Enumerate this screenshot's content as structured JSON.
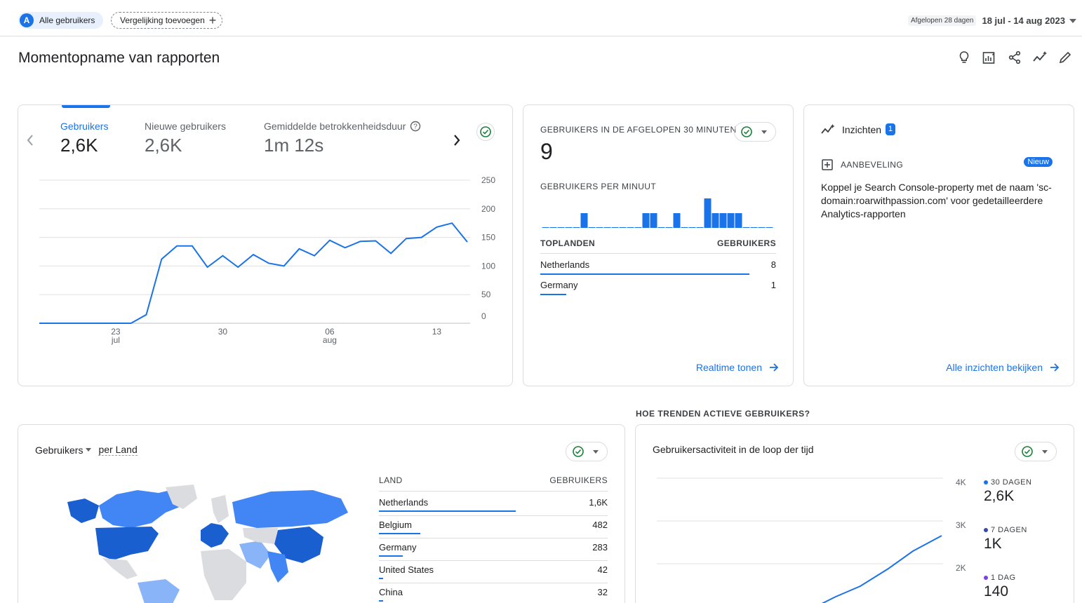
{
  "topbar": {
    "segment_avatar": "A",
    "segment_label": "Alle gebruikers",
    "compare_label": "Vergelijking toevoegen",
    "compare_plus": "+",
    "date_hint": "Afgelopen 28 dagen",
    "date_range": "18 jul - 14 aug 2023"
  },
  "page": {
    "title": "Momentopname van rapporten",
    "action_icons": [
      "lightbulb-icon",
      "customize-report-icon",
      "share-icon",
      "insights-icon",
      "edit-icon"
    ]
  },
  "overview": {
    "metrics": [
      {
        "label": "Gebruikers",
        "value": "2,6K",
        "active": true
      },
      {
        "label": "Nieuwe gebruikers",
        "value": "2,6K",
        "active": false
      },
      {
        "label": "Gemiddelde betrokkenheidsduur",
        "value": "1m 12s",
        "active": false
      }
    ],
    "chart_data": {
      "type": "line",
      "y_ticks": [
        "250",
        "200",
        "150",
        "100",
        "50",
        "0"
      ],
      "ylim": [
        0,
        250
      ],
      "x_ticks": [
        {
          "label": "23",
          "sub": "jul"
        },
        {
          "label": "30",
          "sub": ""
        },
        {
          "label": "06",
          "sub": "aug"
        },
        {
          "label": "13",
          "sub": ""
        }
      ],
      "grid": true,
      "series": [
        {
          "color": "#1a73e8",
          "values": [
            0,
            0,
            0,
            0,
            0,
            0,
            0,
            15,
            112,
            135,
            135,
            98,
            118,
            98,
            120,
            105,
            100,
            130,
            118,
            145,
            132,
            143,
            144,
            122,
            148,
            150,
            168,
            175,
            142
          ]
        }
      ]
    }
  },
  "realtime": {
    "title": "GEBRUIKERS IN DE AFGELOPEN 30 MINUTEN",
    "value": "9",
    "per_minute_title": "GEBRUIKERS PER MINUUT",
    "per_minute_chart": {
      "type": "bar",
      "values": [
        0,
        0,
        0,
        0,
        0,
        1,
        0,
        0,
        0,
        0,
        0,
        0,
        0,
        1,
        1,
        0,
        0,
        1,
        0,
        0,
        0,
        2,
        1,
        1,
        1,
        1,
        0,
        0,
        0,
        0
      ]
    },
    "table_header_left": "TOPLANDEN",
    "table_header_right": "GEBRUIKERS",
    "rows": [
      {
        "name": "Netherlands",
        "value": "8",
        "num": 8
      },
      {
        "name": "Germany",
        "value": "1",
        "num": 1
      }
    ],
    "link": "Realtime tonen"
  },
  "insights": {
    "title": "Inzichten",
    "count": "1",
    "reco_label": "AANBEVELING",
    "new_badge": "Nieuw",
    "text": "Koppel je Search Console-property met de naam 'sc-domain:roarwithpassion.com' voor gedetailleerdere Analytics-rapporten",
    "link": "Alle inzichten bekijken"
  },
  "trend_section_label": "HOE TRENDEN ACTIEVE GEBRUIKERS?",
  "country_card": {
    "metric_label": "Gebruikers",
    "dimension_label": "per Land",
    "table_header_left": "LAND",
    "table_header_right": "GEBRUIKERS",
    "rows": [
      {
        "name": "Netherlands",
        "value": "1,6K",
        "num": 1600
      },
      {
        "name": "Belgium",
        "value": "482",
        "num": 482
      },
      {
        "name": "Germany",
        "value": "283",
        "num": 283
      },
      {
        "name": "United States",
        "value": "42",
        "num": 42
      },
      {
        "name": "China",
        "value": "32",
        "num": 32
      }
    ]
  },
  "activity_card": {
    "title": "Gebruikersactiviteit in de loop der tijd",
    "y_ticks": [
      "4K",
      "3K",
      "2K"
    ],
    "legend": [
      {
        "label": "30 DAGEN",
        "value": "2,6K",
        "color": "#1a73e8"
      },
      {
        "label": "7 DAGEN",
        "value": "1K",
        "color": "#3949ab"
      },
      {
        "label": "1 DAG",
        "value": "140",
        "color": "#7b3fe4"
      }
    ]
  }
}
